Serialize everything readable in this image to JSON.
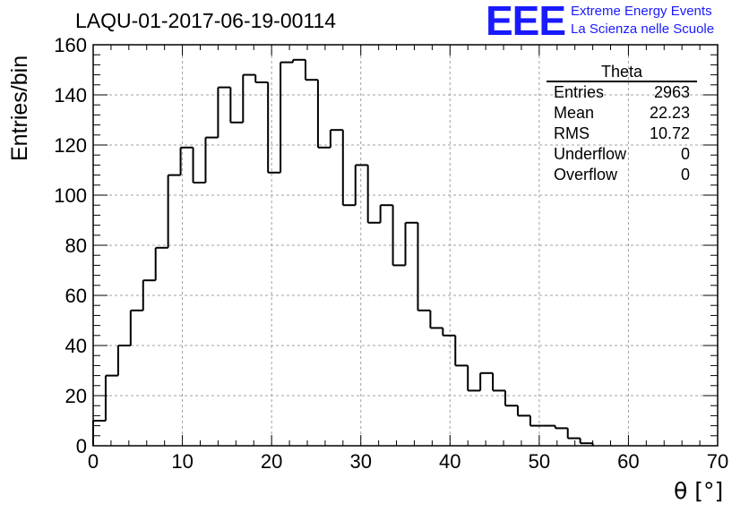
{
  "title": "LAQU-01-2017-06-19-00114",
  "logo": {
    "mark": "EEE",
    "line1": "Extreme Energy Events",
    "line2": "La Scienza nelle Scuole"
  },
  "colors": {
    "logo": "#1a1aff",
    "histogram": "#000000",
    "grid": "#a0a0a0"
  },
  "stats": {
    "title": "Theta",
    "rows": [
      {
        "label": "Entries",
        "value": "2963"
      },
      {
        "label": "Mean",
        "value": "22.23"
      },
      {
        "label": "RMS",
        "value": "10.72"
      },
      {
        "label": "Underflow",
        "value": "0"
      },
      {
        "label": "Overflow",
        "value": "0"
      }
    ]
  },
  "chart_data": {
    "type": "histogram",
    "xlabel": "θ [°]",
    "ylabel": "Entries/bin",
    "xlim": [
      0,
      70
    ],
    "ylim": [
      0,
      160
    ],
    "bin_width": 1.4,
    "x_ticks": [
      0,
      10,
      20,
      30,
      40,
      50,
      60,
      70
    ],
    "y_ticks": [
      0,
      20,
      40,
      60,
      80,
      100,
      120,
      140,
      160
    ],
    "grid": true,
    "values": [
      10,
      28,
      40,
      54,
      66,
      79,
      108,
      119,
      105,
      123,
      143,
      129,
      148,
      145,
      109,
      153,
      154,
      146,
      119,
      126,
      96,
      112,
      89,
      96,
      72,
      89,
      54,
      47,
      44,
      32,
      22,
      29,
      22,
      16,
      12,
      8,
      8,
      7,
      3,
      1,
      0,
      0,
      0,
      0,
      0,
      0,
      0,
      0,
      0,
      0
    ]
  }
}
